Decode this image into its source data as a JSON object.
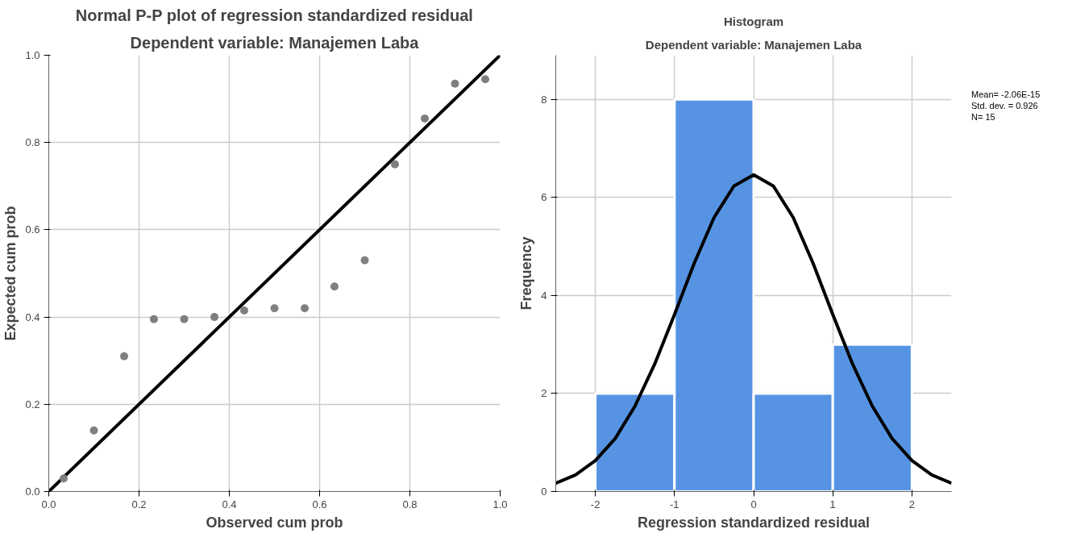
{
  "chart_data": [
    {
      "type": "scatter",
      "title": "Normal P-P plot of regression standardized residual",
      "subtitle": "Dependent variable: Manajemen Laba",
      "xlabel": "Observed cum prob",
      "ylabel": "Expected cum prob",
      "xlim": [
        0,
        1
      ],
      "ylim": [
        0,
        1
      ],
      "xticks": [
        {
          "value": 0,
          "label": "0.0"
        },
        0.2,
        0.4,
        0.6,
        0.8,
        {
          "value": 1,
          "label": "1.0"
        }
      ],
      "yticks": [
        {
          "value": 0,
          "label": "0.0"
        },
        0.2,
        0.4,
        0.6,
        0.8,
        {
          "value": 1,
          "label": "1.0"
        }
      ],
      "grid": true,
      "series": [
        {
          "type": "scatter",
          "marker": "circle",
          "color": "#7f7f7f",
          "x": [
            0.033,
            0.1,
            0.167,
            0.233,
            0.3,
            0.367,
            0.433,
            0.5,
            0.567,
            0.633,
            0.7,
            0.767,
            0.833,
            0.9,
            0.967
          ],
          "values": [
            0.03,
            0.14,
            0.31,
            0.395,
            0.395,
            0.4,
            0.415,
            0.42,
            0.42,
            0.47,
            0.53,
            0.75,
            0.855,
            0.935,
            0.945
          ]
        },
        {
          "type": "line",
          "color": "#000000",
          "x": [
            0,
            1
          ],
          "values": [
            0,
            1
          ]
        }
      ]
    },
    {
      "type": "histogram",
      "title": "Histogram",
      "subtitle": "Dependent variable: Manajemen Laba",
      "xlabel": "Regression standardized residual",
      "ylabel": "Frequency",
      "bins": [
        -2,
        -1,
        0,
        1,
        2
      ],
      "values": [
        2,
        8,
        2,
        3
      ],
      "color": "#5694e3",
      "xlim": [
        -2.5,
        2.5
      ],
      "ylim": [
        0,
        8.9
      ],
      "xticks": [
        -2,
        -1,
        0,
        1,
        2
      ],
      "yticks": [
        0,
        2,
        4,
        6,
        8
      ],
      "grid": true,
      "annotations": [
        "Mean= -2.06E-15",
        "Std. dev. = 0.926",
        "N= 15"
      ],
      "series": [
        {
          "type": "line",
          "color": "#000000",
          "x": [
            -2.5,
            -2.25,
            -2,
            -1.75,
            -1.5,
            -1.25,
            -1,
            -0.75,
            -0.5,
            -0.25,
            0,
            0.25,
            0.5,
            0.75,
            1,
            1.25,
            1.5,
            1.75,
            2,
            2.25,
            2.5
          ],
          "values": [
            0.17,
            0.34,
            0.63,
            1.08,
            1.74,
            2.6,
            3.61,
            4.66,
            5.59,
            6.23,
            6.46,
            6.23,
            5.59,
            4.66,
            3.61,
            2.6,
            1.74,
            1.08,
            0.63,
            0.34,
            0.17
          ]
        }
      ]
    }
  ]
}
